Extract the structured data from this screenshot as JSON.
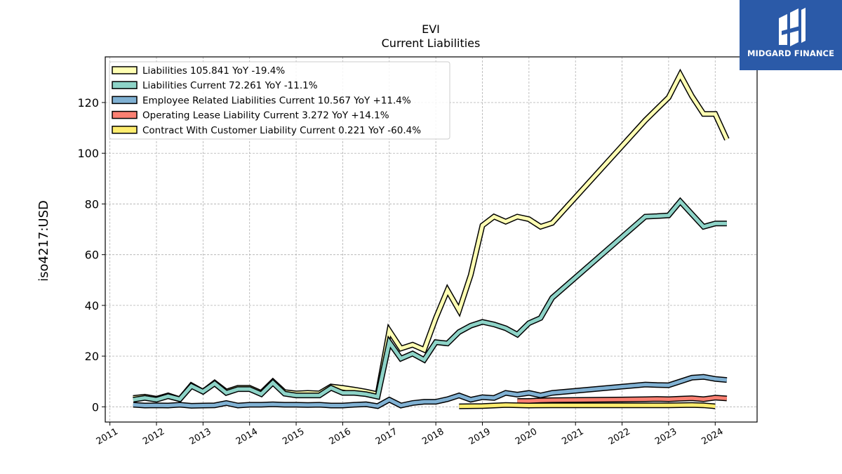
{
  "brand": {
    "name": "MIDGARD FINANCE",
    "color": "#2b5aa8",
    "icon": "midgard-logo-icon"
  },
  "chart_data": {
    "type": "line",
    "title": "EVI",
    "subtitle": "Current  Liabilities",
    "ylabel": "iso4217:USD",
    "xlabel": "",
    "xlim": [
      2010.9,
      2024.9
    ],
    "ylim": [
      -6,
      138
    ],
    "yticks": [
      0,
      20,
      40,
      60,
      80,
      100,
      120
    ],
    "xticks": [
      "2011",
      "2012",
      "2013",
      "2014",
      "2015",
      "2016",
      "2017",
      "2018",
      "2019",
      "2020",
      "2021",
      "2022",
      "2023",
      "2024"
    ],
    "grid": true,
    "legend_position": "top-left",
    "series": [
      {
        "name": "Liabilities  105.841 YoY -19.4%",
        "color": "#ffffb3",
        "points": [
          [
            2011.5,
            3.5
          ],
          [
            2011.75,
            4.0
          ],
          [
            2012.0,
            3.2
          ],
          [
            2012.25,
            4.5
          ],
          [
            2012.5,
            3.0
          ],
          [
            2012.75,
            8.5
          ],
          [
            2013.0,
            6.0
          ],
          [
            2013.25,
            9.5
          ],
          [
            2013.5,
            6.0
          ],
          [
            2013.75,
            7.5
          ],
          [
            2014.0,
            7.5
          ],
          [
            2014.25,
            5.5
          ],
          [
            2014.5,
            10.0
          ],
          [
            2014.75,
            5.8
          ],
          [
            2015.0,
            5.3
          ],
          [
            2015.25,
            5.5
          ],
          [
            2015.5,
            5.3
          ],
          [
            2015.75,
            8.0
          ],
          [
            2016.0,
            7.5
          ],
          [
            2016.25,
            6.8
          ],
          [
            2016.5,
            6.0
          ],
          [
            2016.75,
            5.0
          ],
          [
            2017.0,
            30.0
          ],
          [
            2017.25,
            23.0
          ],
          [
            2017.5,
            24.5
          ],
          [
            2017.75,
            22.5
          ],
          [
            2018.0,
            35.0
          ],
          [
            2018.25,
            46.0
          ],
          [
            2018.5,
            38.0
          ],
          [
            2018.75,
            52.0
          ],
          [
            2019.0,
            71.5
          ],
          [
            2019.25,
            75.0
          ],
          [
            2019.5,
            73.0
          ],
          [
            2019.75,
            75.0
          ],
          [
            2020.0,
            74.0
          ],
          [
            2020.25,
            71.0
          ],
          [
            2020.5,
            72.5
          ],
          [
            2022.5,
            113.0
          ],
          [
            2022.75,
            117.5
          ],
          [
            2023.0,
            122.0
          ],
          [
            2023.25,
            131.0
          ],
          [
            2023.5,
            122.5
          ],
          [
            2023.75,
            115.5
          ],
          [
            2024.0,
            115.5
          ],
          [
            2024.25,
            105.5
          ]
        ]
      },
      {
        "name": "Liabilities Current  72.261 YoY -11.1%",
        "color": "#8dd3c7",
        "points": [
          [
            2011.5,
            2.8
          ],
          [
            2011.75,
            3.5
          ],
          [
            2012.0,
            2.8
          ],
          [
            2012.25,
            4.2
          ],
          [
            2012.5,
            3.0
          ],
          [
            2012.75,
            8.2
          ],
          [
            2013.0,
            6.0
          ],
          [
            2013.25,
            9.2
          ],
          [
            2013.5,
            5.5
          ],
          [
            2013.75,
            7.0
          ],
          [
            2014.0,
            7.0
          ],
          [
            2014.25,
            5.0
          ],
          [
            2014.5,
            9.5
          ],
          [
            2014.75,
            5.2
          ],
          [
            2015.0,
            4.5
          ],
          [
            2015.25,
            4.5
          ],
          [
            2015.5,
            4.5
          ],
          [
            2015.75,
            7.5
          ],
          [
            2016.0,
            5.5
          ],
          [
            2016.25,
            5.5
          ],
          [
            2016.5,
            5.0
          ],
          [
            2016.75,
            4.0
          ],
          [
            2017.0,
            25.5
          ],
          [
            2017.25,
            19.0
          ],
          [
            2017.5,
            21.0
          ],
          [
            2017.75,
            18.5
          ],
          [
            2018.0,
            25.5
          ],
          [
            2018.25,
            25.0
          ],
          [
            2018.5,
            29.5
          ],
          [
            2018.75,
            32.0
          ],
          [
            2019.0,
            33.5
          ],
          [
            2019.25,
            32.5
          ],
          [
            2019.5,
            31.0
          ],
          [
            2019.75,
            28.5
          ],
          [
            2020.0,
            33.0
          ],
          [
            2020.25,
            35.0
          ],
          [
            2020.5,
            43.0
          ],
          [
            2022.5,
            75.0
          ],
          [
            2022.75,
            75.2
          ],
          [
            2023.0,
            75.5
          ],
          [
            2023.25,
            81.0
          ],
          [
            2023.5,
            76.0
          ],
          [
            2023.75,
            71.0
          ],
          [
            2024.0,
            72.3
          ],
          [
            2024.25,
            72.3
          ]
        ]
      },
      {
        "name": "Employee Related Liabilities Current  10.567 YoY +11.4%",
        "color": "#80b1d3",
        "points": [
          [
            2011.5,
            0.8
          ],
          [
            2011.75,
            0.5
          ],
          [
            2012.0,
            0.6
          ],
          [
            2012.25,
            0.5
          ],
          [
            2012.5,
            0.8
          ],
          [
            2012.75,
            0.4
          ],
          [
            2013.0,
            0.5
          ],
          [
            2013.25,
            0.6
          ],
          [
            2013.5,
            1.5
          ],
          [
            2013.75,
            0.5
          ],
          [
            2014.0,
            0.8
          ],
          [
            2014.25,
            0.8
          ],
          [
            2014.5,
            1.0
          ],
          [
            2014.75,
            0.8
          ],
          [
            2015.0,
            0.8
          ],
          [
            2015.25,
            0.7
          ],
          [
            2015.5,
            0.8
          ],
          [
            2015.75,
            0.5
          ],
          [
            2016.0,
            0.5
          ],
          [
            2016.25,
            0.8
          ],
          [
            2016.5,
            1.0
          ],
          [
            2016.75,
            0.3
          ],
          [
            2017.0,
            2.8
          ],
          [
            2017.25,
            0.5
          ],
          [
            2017.5,
            1.5
          ],
          [
            2017.75,
            2.0
          ],
          [
            2018.0,
            2.0
          ],
          [
            2018.25,
            3.0
          ],
          [
            2018.5,
            4.5
          ],
          [
            2018.75,
            2.8
          ],
          [
            2019.0,
            3.8
          ],
          [
            2019.25,
            3.5
          ],
          [
            2019.5,
            5.5
          ],
          [
            2019.75,
            4.8
          ],
          [
            2020.0,
            5.5
          ],
          [
            2020.25,
            4.5
          ],
          [
            2020.5,
            5.5
          ],
          [
            2022.5,
            8.8
          ],
          [
            2022.75,
            8.6
          ],
          [
            2023.0,
            8.5
          ],
          [
            2023.25,
            10.0
          ],
          [
            2023.5,
            11.5
          ],
          [
            2023.75,
            11.8
          ],
          [
            2024.0,
            11.0
          ],
          [
            2024.25,
            10.6
          ]
        ]
      },
      {
        "name": "Operating Lease Liability Current  3.272 YoY +14.1%",
        "color": "#fb8072",
        "points": [
          [
            2019.75,
            2.3
          ],
          [
            2020.0,
            2.3
          ],
          [
            2020.25,
            2.5
          ],
          [
            2020.5,
            2.6
          ],
          [
            2022.5,
            3.0
          ],
          [
            2022.75,
            3.1
          ],
          [
            2023.0,
            3.0
          ],
          [
            2023.25,
            3.2
          ],
          [
            2023.5,
            3.4
          ],
          [
            2023.75,
            3.0
          ],
          [
            2024.0,
            3.6
          ],
          [
            2024.25,
            3.3
          ]
        ]
      },
      {
        "name": "Contract With Customer Liability Current  0.221 YoY -60.4%",
        "color": "#ffed6f",
        "points": [
          [
            2018.5,
            0.2
          ],
          [
            2019.0,
            0.3
          ],
          [
            2019.5,
            0.7
          ],
          [
            2020.0,
            0.5
          ],
          [
            2020.5,
            0.6
          ],
          [
            2022.5,
            0.6
          ],
          [
            2023.0,
            0.6
          ],
          [
            2023.5,
            0.7
          ],
          [
            2023.75,
            0.6
          ],
          [
            2024.0,
            0.2
          ]
        ]
      }
    ]
  }
}
